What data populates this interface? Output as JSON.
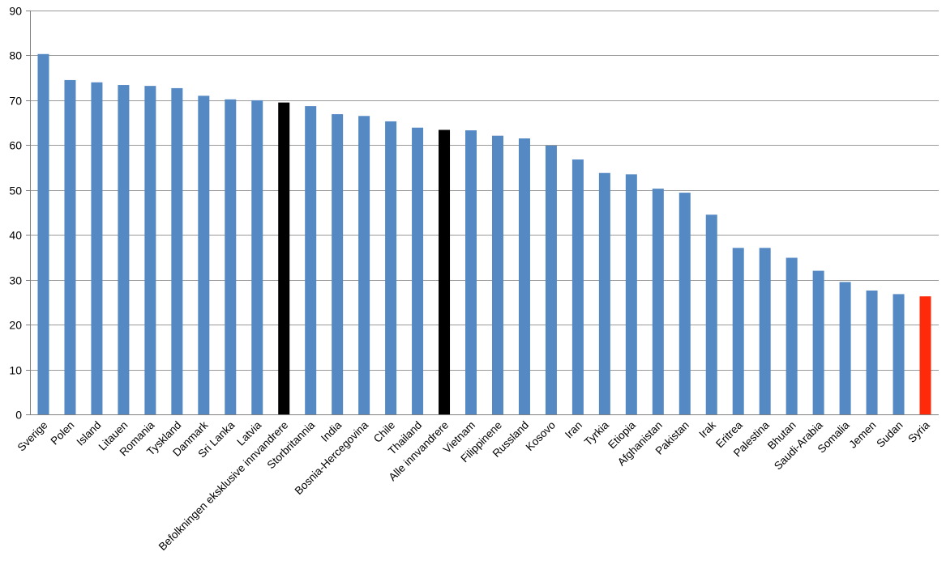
{
  "chart_data": {
    "type": "bar",
    "title": "",
    "xlabel": "",
    "ylabel": "",
    "ylim": [
      0,
      90
    ],
    "yticks": [
      0,
      10,
      20,
      30,
      40,
      50,
      60,
      70,
      80,
      90
    ],
    "grid": true,
    "legend": "none",
    "categories": [
      "Sverige",
      "Polen",
      "Island",
      "Litauen",
      "Romania",
      "Tyskland",
      "Danmark",
      "Sri Lanka",
      "Latvia",
      "Befolkningen eksklusive innvandrere",
      "Storbritannia",
      "India",
      "Bosnia-Hercegovina",
      "Chile",
      "Thailand",
      "Alle innvandrere",
      "Vietnam",
      "Filippinene",
      "Russland",
      "Kosovo",
      "Iran",
      "Tyrkia",
      "Etiopia",
      "Afghanistan",
      "Pakistan",
      "Irak",
      "Eritrea",
      "Palestina",
      "Bhutan",
      "Saudi-Arabia",
      "Somalia",
      "Jemen",
      "Sudan",
      "Syria"
    ],
    "values": [
      80.3,
      74.5,
      74.0,
      73.4,
      73.2,
      72.7,
      71.0,
      70.2,
      70.0,
      69.5,
      68.7,
      66.9,
      66.5,
      65.3,
      63.9,
      63.4,
      63.3,
      62.1,
      61.5,
      59.9,
      56.8,
      53.8,
      53.5,
      50.3,
      49.4,
      44.5,
      37.1,
      37.1,
      34.9,
      32.0,
      29.5,
      27.6,
      26.8,
      26.3
    ],
    "colors": {
      "default": "#5589C4",
      "highlight_black": "#000000",
      "highlight_red": "#FF2A0A",
      "grid": "#9A9A9A",
      "axis": "#808080"
    },
    "highlights": {
      "Befolkningen eksklusive innvandrere": "highlight_black",
      "Alle innvandrere": "highlight_black",
      "Syria": "highlight_red"
    }
  }
}
